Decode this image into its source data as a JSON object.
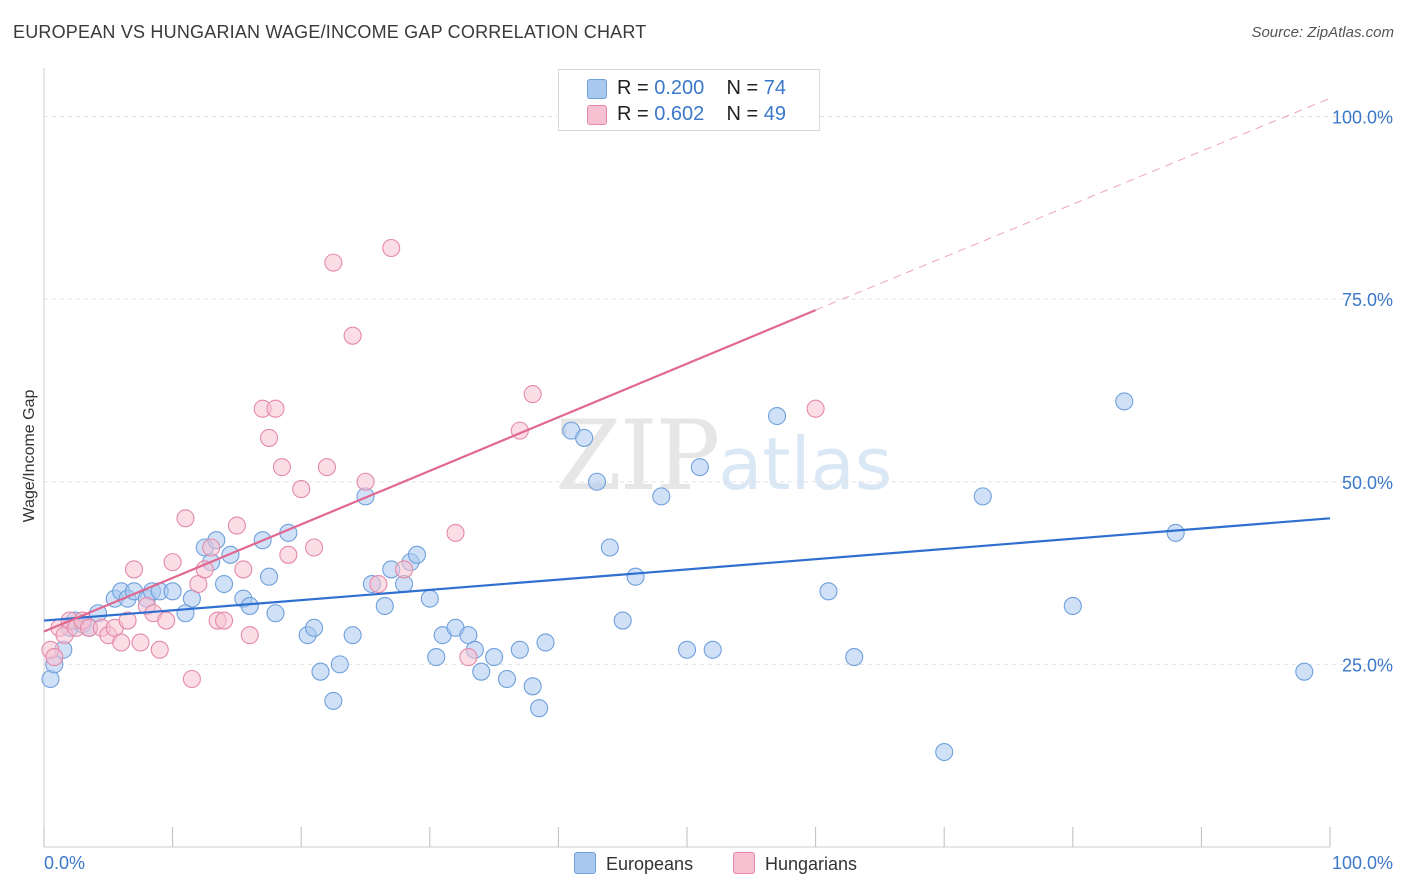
{
  "title": "EUROPEAN VS HUNGARIAN WAGE/INCOME GAP CORRELATION CHART",
  "source": "Source: ZipAtlas.com",
  "watermark": {
    "zip": "ZIP",
    "atlas": "atlas"
  },
  "legend": {
    "rows": [
      {
        "r_label": "R =",
        "r_value": "0.200",
        "n_label": "N =",
        "n_value": "74",
        "color": "#a9c8f0",
        "border": "#6fa0dc"
      },
      {
        "r_label": "R =",
        "r_value": "0.602",
        "n_label": "N =",
        "n_value": "49",
        "color": "#f7c1d1",
        "border": "#e48aa8"
      }
    ]
  },
  "bottom_legend": [
    "Europeans",
    "Hungarians"
  ],
  "chart_data": {
    "type": "scatter",
    "ylabel": "Wage/Income Gap",
    "xlabel": "",
    "x_ticks": [
      "0.0%",
      "100.0%"
    ],
    "y_ticks": [
      "25.0%",
      "50.0%",
      "75.0%",
      "100.0%"
    ],
    "xlim": [
      0,
      100
    ],
    "ylim": [
      0,
      105
    ],
    "grid": true,
    "legend_position": "top-center",
    "series": [
      {
        "name": "Europeans",
        "color": "#a9c8f0",
        "stroke": "#6fa0dc",
        "line_color": "#2f6fd0",
        "trend": {
          "x": [
            0,
            100
          ],
          "y": [
            31.0,
            45.0
          ]
        },
        "points": [
          [
            0.5,
            23
          ],
          [
            0.8,
            25
          ],
          [
            1.5,
            27
          ],
          [
            2,
            30
          ],
          [
            2.4,
            31
          ],
          [
            3,
            30.5
          ],
          [
            3.5,
            30
          ],
          [
            4.2,
            32
          ],
          [
            5.5,
            34
          ],
          [
            6,
            35
          ],
          [
            6.5,
            34
          ],
          [
            7,
            35
          ],
          [
            8,
            34
          ],
          [
            8.4,
            35
          ],
          [
            9,
            35
          ],
          [
            10,
            35
          ],
          [
            11,
            32
          ],
          [
            11.5,
            34
          ],
          [
            12.5,
            41
          ],
          [
            13,
            39
          ],
          [
            13.4,
            42
          ],
          [
            14,
            36
          ],
          [
            14.5,
            40
          ],
          [
            15.5,
            34
          ],
          [
            16,
            33
          ],
          [
            17,
            42
          ],
          [
            17.5,
            37
          ],
          [
            18,
            32
          ],
          [
            19,
            43
          ],
          [
            20.5,
            29
          ],
          [
            21,
            30
          ],
          [
            21.5,
            24
          ],
          [
            22.5,
            20
          ],
          [
            23,
            25
          ],
          [
            24,
            29
          ],
          [
            25,
            48
          ],
          [
            25.5,
            36
          ],
          [
            26.5,
            33
          ],
          [
            27,
            38
          ],
          [
            28,
            36
          ],
          [
            28.5,
            39
          ],
          [
            29,
            40
          ],
          [
            30,
            34
          ],
          [
            30.5,
            26
          ],
          [
            31,
            29
          ],
          [
            32,
            30
          ],
          [
            33,
            29
          ],
          [
            33.5,
            27
          ],
          [
            34,
            24
          ],
          [
            35,
            26
          ],
          [
            36,
            23
          ],
          [
            37,
            27
          ],
          [
            38,
            22
          ],
          [
            38.5,
            19
          ],
          [
            39,
            28
          ],
          [
            41,
            57
          ],
          [
            42,
            56
          ],
          [
            43,
            50
          ],
          [
            44,
            41
          ],
          [
            45,
            31
          ],
          [
            46,
            37
          ],
          [
            48,
            48
          ],
          [
            50,
            27
          ],
          [
            51,
            52
          ],
          [
            52,
            27
          ],
          [
            57,
            59
          ],
          [
            61,
            35
          ],
          [
            63,
            26
          ],
          [
            70,
            13
          ],
          [
            73,
            48
          ],
          [
            80,
            33
          ],
          [
            84,
            61
          ],
          [
            88,
            43
          ],
          [
            98,
            24
          ]
        ]
      },
      {
        "name": "Hungarians",
        "color": "#f7c1d1",
        "stroke": "#e48aa8",
        "line_color": "#e06890",
        "trend": {
          "x": [
            0,
            60
          ],
          "y": [
            29.5,
            73.5
          ]
        },
        "trend_dashed": {
          "x": [
            60,
            100
          ],
          "y": [
            73.5,
            102.5
          ]
        },
        "points": [
          [
            0.5,
            27
          ],
          [
            0.8,
            26
          ],
          [
            1.2,
            30
          ],
          [
            1.6,
            29
          ],
          [
            2,
            31
          ],
          [
            2.5,
            30
          ],
          [
            3,
            31
          ],
          [
            3.5,
            30
          ],
          [
            4.5,
            30
          ],
          [
            5,
            29
          ],
          [
            5.5,
            30
          ],
          [
            6,
            28
          ],
          [
            6.5,
            31
          ],
          [
            7,
            38
          ],
          [
            7.5,
            28
          ],
          [
            8,
            33
          ],
          [
            8.5,
            32
          ],
          [
            9,
            27
          ],
          [
            9.5,
            31
          ],
          [
            10,
            39
          ],
          [
            11,
            45
          ],
          [
            11.5,
            23
          ],
          [
            12,
            36
          ],
          [
            12.5,
            38
          ],
          [
            13,
            41
          ],
          [
            13.5,
            31
          ],
          [
            14,
            31
          ],
          [
            15,
            44
          ],
          [
            15.5,
            38
          ],
          [
            16,
            29
          ],
          [
            17,
            60
          ],
          [
            17.5,
            56
          ],
          [
            18,
            60
          ],
          [
            18.5,
            52
          ],
          [
            19,
            40
          ],
          [
            20,
            49
          ],
          [
            21,
            41
          ],
          [
            22,
            52
          ],
          [
            22.5,
            80
          ],
          [
            24,
            70
          ],
          [
            25,
            50
          ],
          [
            26,
            36
          ],
          [
            27,
            82
          ],
          [
            28,
            38
          ],
          [
            32,
            43
          ],
          [
            33,
            26
          ],
          [
            37,
            57
          ],
          [
            38,
            62
          ],
          [
            60,
            60
          ]
        ]
      }
    ]
  }
}
